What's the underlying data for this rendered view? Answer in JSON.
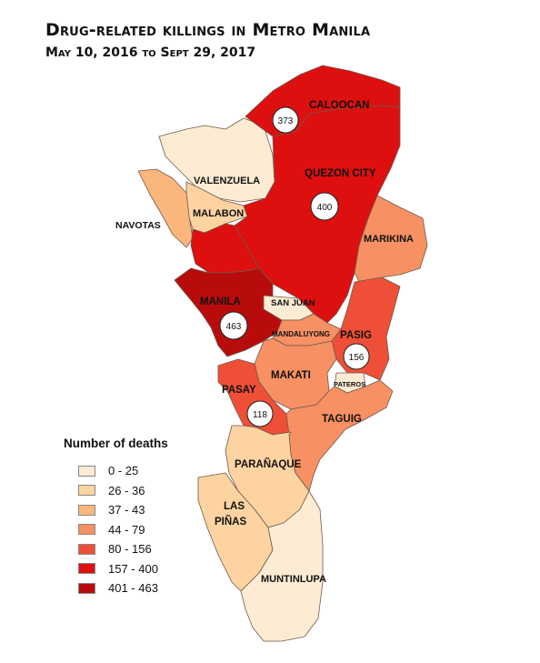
{
  "title": "Drug-related killings in Metro Manila",
  "subtitle": "May 10, 2016 to Sept 29, 2017",
  "legend": {
    "title": "Number of deaths",
    "items": [
      {
        "label": "0 - 25",
        "color": "#fdebd3"
      },
      {
        "label": "26 - 36",
        "color": "#fcd3a1"
      },
      {
        "label": "37 - 43",
        "color": "#fbb67b"
      },
      {
        "label": "44 - 79",
        "color": "#f79062"
      },
      {
        "label": "80 - 156",
        "color": "#ef4f36"
      },
      {
        "label": "157 - 400",
        "color": "#dd0f0f"
      },
      {
        "label": "401 - 463",
        "color": "#b80c0c"
      }
    ]
  },
  "cities": {
    "caloocan": "CALOOCAN",
    "quezon_city": "QUEZON CITY",
    "valenzuela": "VALENZUELA",
    "malabon": "MALABON",
    "navotas": "NAVOTAS",
    "marikina": "MARIKINA",
    "manila": "MANILA",
    "san_juan": "SAN JUAN",
    "mandaluyong": "MANDALUYONG",
    "pasig": "PASIG",
    "makati": "MAKATI",
    "pateros": "PATEROS",
    "pasay": "PASAY",
    "taguig": "TAGUIG",
    "paranaque": "PARAÑAQUE",
    "las_pinas_line1": "LAS",
    "las_pinas_line2": "PIÑAS",
    "muntinlupa": "MUNTINLUPA"
  },
  "badges": {
    "caloocan": "373",
    "quezon_city": "400",
    "manila": "463",
    "pasig": "156",
    "pasay": "118"
  }
}
